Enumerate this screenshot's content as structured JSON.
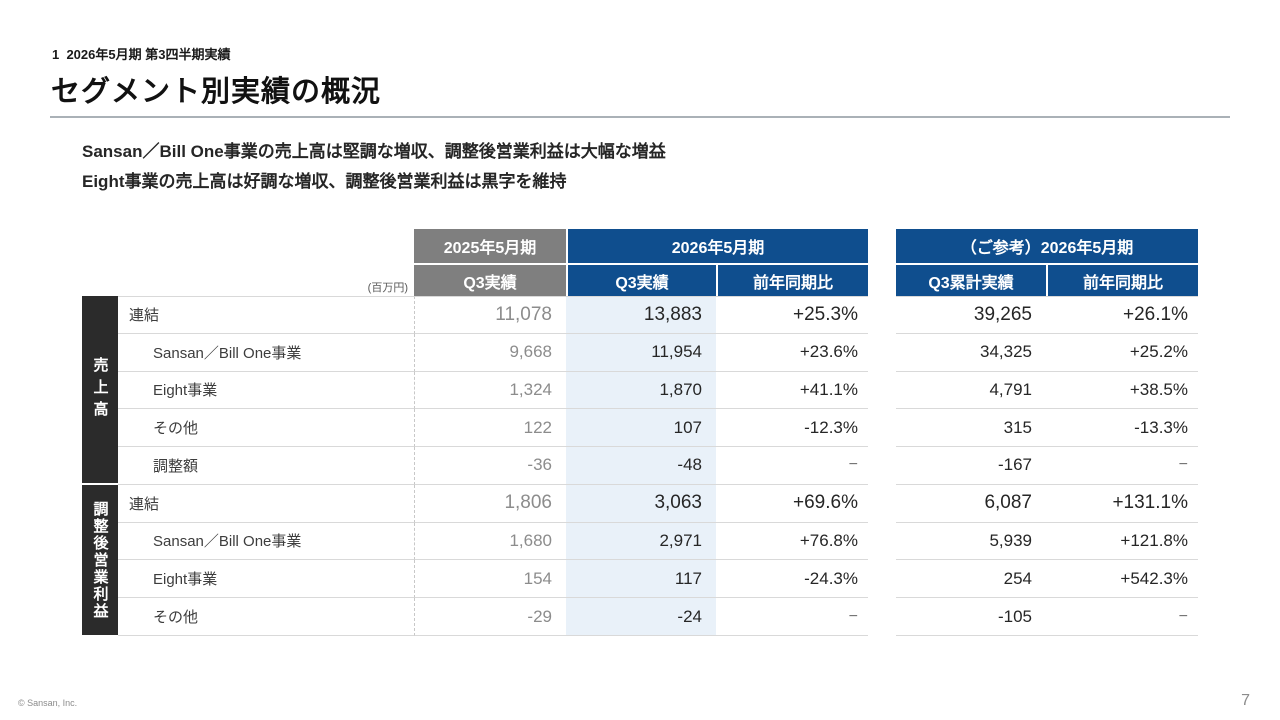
{
  "slide": {
    "eyebrow": "1  2026年5月期 第3四半期実績",
    "title": "セグメント別実績の概況",
    "message_line1": "Sansan／Bill One事業の売上高は堅調な増収、調整後営業利益は大幅な増益",
    "message_line2": "Eight事業の売上高は好調な増収、調整後営業利益は黒字を維持",
    "footer_copyright": "© Sansan, Inc.",
    "page_number": "7"
  },
  "table": {
    "unit_label": "(百万円)",
    "headers": {
      "fy2025": "2025年5月期",
      "fy2026": "2026年5月期",
      "reference": "（ご参考）2026年5月期",
      "fy2025_q3": "Q3実績",
      "fy2026_q3": "Q3実績",
      "fy2026_yoy": "前年同期比",
      "ref_q3_cum": "Q3累計実績",
      "ref_yoy": "前年同期比"
    },
    "group_labels": {
      "sales": "売上高",
      "adjusted_operating_profit": "調整後営業利益"
    },
    "rows": [
      {
        "label": "連結",
        "q3_2025": "11,078",
        "q3_2026": "13,883",
        "yoy": "+25.3%",
        "cum": "39,265",
        "cum_yoy": "+26.1%"
      },
      {
        "label": "Sansan／Bill One事業",
        "q3_2025": "9,668",
        "q3_2026": "11,954",
        "yoy": "+23.6%",
        "cum": "34,325",
        "cum_yoy": "+25.2%"
      },
      {
        "label": "Eight事業",
        "q3_2025": "1,324",
        "q3_2026": "1,870",
        "yoy": "+41.1%",
        "cum": "4,791",
        "cum_yoy": "+38.5%"
      },
      {
        "label": "その他",
        "q3_2025": "122",
        "q3_2026": "107",
        "yoy": "-12.3%",
        "cum": "315",
        "cum_yoy": "-13.3%"
      },
      {
        "label": "調整額",
        "q3_2025": "-36",
        "q3_2026": "-48",
        "yoy": "−",
        "cum": "-167",
        "cum_yoy": "−"
      },
      {
        "label": "連結",
        "q3_2025": "1,806",
        "q3_2026": "3,063",
        "yoy": "+69.6%",
        "cum": "6,087",
        "cum_yoy": "+131.1%"
      },
      {
        "label": "Sansan／Bill One事業",
        "q3_2025": "1,680",
        "q3_2026": "2,971",
        "yoy": "+76.8%",
        "cum": "5,939",
        "cum_yoy": "+121.8%"
      },
      {
        "label": "Eight事業",
        "q3_2025": "154",
        "q3_2026": "117",
        "yoy": "-24.3%",
        "cum": "254",
        "cum_yoy": "+542.3%"
      },
      {
        "label": "その他",
        "q3_2025": "-29",
        "q3_2026": "-24",
        "yoy": "−",
        "cum": "-105",
        "cum_yoy": "−"
      }
    ]
  },
  "colors": {
    "header_blue": "#0f4e8e",
    "header_gray": "#7f7f7f",
    "group_label_bg": "#2b2b2b",
    "highlight_column_bg": "#e9f1f9",
    "grid_line": "#d9d9d9",
    "prior_year_text": "#8c8c8c",
    "value_text": "#262626"
  }
}
